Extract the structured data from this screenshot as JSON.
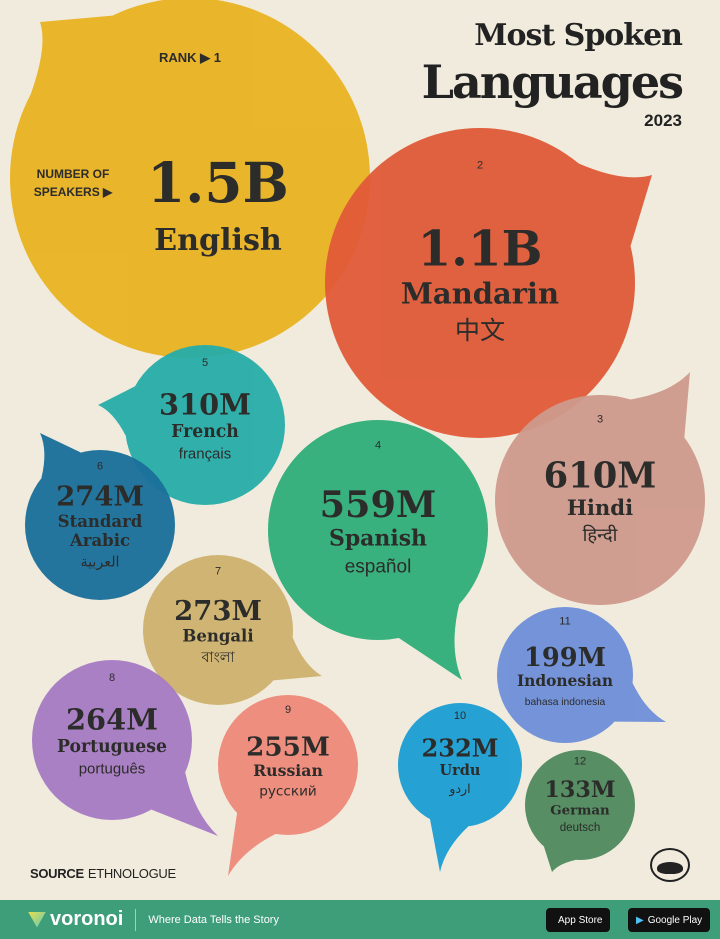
{
  "header": {
    "line1": "Most Spoken",
    "line2": "Languages",
    "year": "2023"
  },
  "labels": {
    "rank": "RANK",
    "speakers_line1": "NUMBER OF",
    "speakers_line2": "SPEAKERS"
  },
  "colors": {
    "background": "#F1EBDD",
    "footer": "#3E9E7A"
  },
  "chart_data": {
    "type": "bubble",
    "title": "Most Spoken Languages 2023",
    "bubbles": [
      {
        "rank": "1",
        "value": "1.5B",
        "speakers_millions": 1500,
        "name": "English",
        "native": "",
        "color": "#E9B322"
      },
      {
        "rank": "2",
        "value": "1.1B",
        "speakers_millions": 1100,
        "name": "Mandarin",
        "native": "中文",
        "color": "#E05A37"
      },
      {
        "rank": "3",
        "value": "610M",
        "speakers_millions": 610,
        "name": "Hindi",
        "native": "हिन्दी",
        "color": "#CF9A8C"
      },
      {
        "rank": "4",
        "value": "559M",
        "speakers_millions": 559,
        "name": "Spanish",
        "native": "español",
        "color": "#2FAE79"
      },
      {
        "rank": "5",
        "value": "310M",
        "speakers_millions": 310,
        "name": "French",
        "native": "français",
        "color": "#27ADA9"
      },
      {
        "rank": "6",
        "value": "274M",
        "speakers_millions": 274,
        "name": "Standard Arabic",
        "native": "العربية",
        "color": "#1A6F9A"
      },
      {
        "rank": "7",
        "value": "273M",
        "speakers_millions": 273,
        "name": "Bengali",
        "native": "বাংলা",
        "color": "#CFB26E"
      },
      {
        "rank": "8",
        "value": "264M",
        "speakers_millions": 264,
        "name": "Portuguese",
        "native": "português",
        "color": "#A77BC4"
      },
      {
        "rank": "9",
        "value": "255M",
        "speakers_millions": 255,
        "name": "Russian",
        "native": "русский",
        "color": "#EE8A7A"
      },
      {
        "rank": "10",
        "value": "232M",
        "speakers_millions": 232,
        "name": "Urdu",
        "native": "اردو",
        "color": "#1B9ED3"
      },
      {
        "rank": "11",
        "value": "199M",
        "speakers_millions": 199,
        "name": "Indonesian",
        "native": "bahasa indonesia",
        "color": "#6E8FD9"
      },
      {
        "rank": "12",
        "value": "133M",
        "speakers_millions": 133,
        "name": "German",
        "native": "deutsch",
        "color": "#4F8A5D"
      }
    ]
  },
  "source": {
    "label": "SOURCE",
    "value": "ETHNOLOGUE"
  },
  "footer": {
    "brand": "voronoi",
    "tagline": "Where Data Tells the Story",
    "app_store": "App Store",
    "google_play": "Google Play"
  }
}
